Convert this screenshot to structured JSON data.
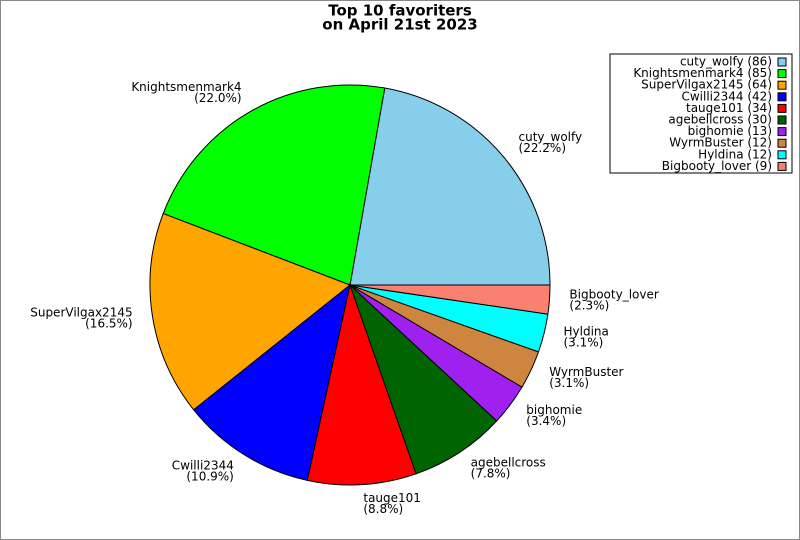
{
  "chart_data": {
    "type": "pie",
    "title": [
      "Top 10 favoriters",
      "on April 21st 2023"
    ],
    "categories": [
      "cuty_wolfy",
      "Knightsmenmark4",
      "SuperVilgax2145",
      "Cwilli2344",
      "tauge101",
      "agebellcross",
      "bighomie",
      "WyrmBuster",
      "Hyldina",
      "Bigbooty_lover"
    ],
    "values": [
      86,
      85,
      64,
      42,
      34,
      30,
      13,
      12,
      12,
      9
    ],
    "percent_labels": [
      "(22.2%)",
      "(22.0%)",
      "(16.5%)",
      "(10.9%)",
      "(8.8%)",
      "(7.8%)",
      "(3.4%)",
      "(3.1%)",
      "(3.1%)",
      "(2.3%)"
    ],
    "legend_labels": [
      "cuty_wolfy (86)",
      "Knightsmenmark4 (85)",
      "SuperVilgax2145 (64)",
      "Cwilli2344 (42)",
      "tauge101 (34)",
      "agebellcross (30)",
      "bighomie (13)",
      "WyrmBuster (12)",
      "Hyldina (12)",
      "Bigbooty_lover (9)"
    ],
    "colors": [
      "#87ceeb",
      "#00ff00",
      "#ffa500",
      "#0000ff",
      "#ff0000",
      "#006400",
      "#a020f0",
      "#cd853f",
      "#00ffff",
      "#fa8072"
    ],
    "legend": "upper right"
  }
}
